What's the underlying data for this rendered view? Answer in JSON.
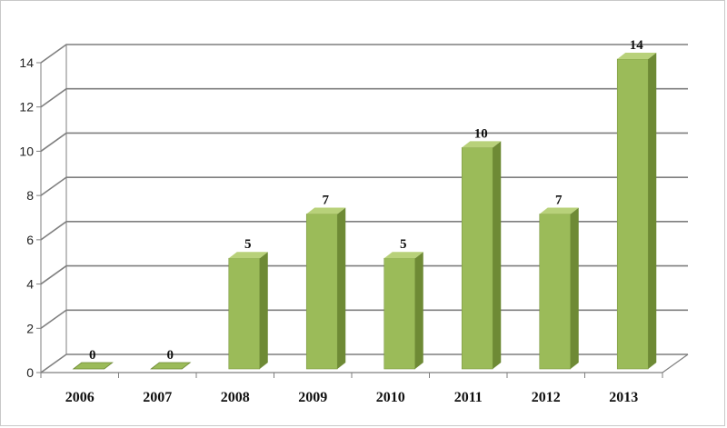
{
  "chart_data": {
    "type": "bar",
    "style": "3d-column",
    "categories": [
      "2006",
      "2007",
      "2008",
      "2009",
      "2010",
      "2011",
      "2012",
      "2013"
    ],
    "values": [
      0,
      0,
      5,
      7,
      5,
      10,
      7,
      14
    ],
    "data_labels": [
      "0",
      "0",
      "5",
      "7",
      "5",
      "10",
      "7",
      "14"
    ],
    "ylim": [
      0,
      14
    ],
    "yticks": [
      0,
      2,
      4,
      6,
      8,
      10,
      12,
      14
    ],
    "grid": true,
    "legend": "none",
    "title": "",
    "xlabel": "",
    "ylabel": "",
    "colors": {
      "bar_front": "#9BBB59",
      "bar_side": "#6E8A35",
      "bar_top": "#B8D17A",
      "grid": "#7f7f7f"
    }
  }
}
